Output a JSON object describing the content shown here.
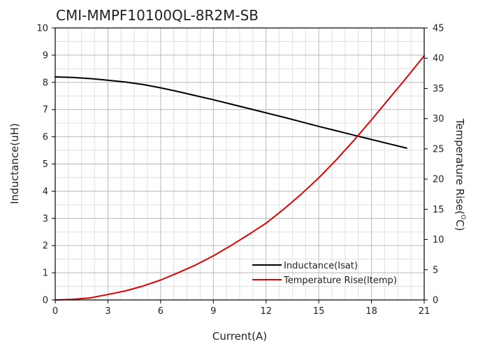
{
  "chart_data": {
    "type": "line",
    "title": "CMI-MMPF10100QL-8R2M-SB",
    "xlabel": "Current(A)",
    "ylabel_left": "Inductance(uH)",
    "ylabel_right_main": "Temperature Rise(",
    "ylabel_right_sup": "O",
    "ylabel_right_end": "C)",
    "xlim": [
      0,
      21
    ],
    "ylim_left": [
      0,
      10
    ],
    "ylim_right": [
      0,
      45
    ],
    "x_ticks": [
      "0",
      "3",
      "6",
      "9",
      "12",
      "15",
      "18",
      "21"
    ],
    "y_left_ticks": [
      "0",
      "1",
      "2",
      "3",
      "4",
      "5",
      "6",
      "7",
      "8",
      "9",
      "10"
    ],
    "y_right_ticks": [
      "0",
      "5",
      "10",
      "15",
      "20",
      "25",
      "30",
      "35",
      "40",
      "45"
    ],
    "grid": true,
    "legend_position": "bottom-right",
    "series": [
      {
        "name": "Inductance(Isat)",
        "axis": "left",
        "color": "#000000",
        "x": [
          0,
          1,
          2,
          3,
          4,
          5,
          6,
          7,
          8,
          9,
          10,
          11,
          12,
          13,
          14,
          15,
          16,
          17,
          18,
          19,
          20
        ],
        "y": [
          8.2,
          8.18,
          8.14,
          8.08,
          8.01,
          7.92,
          7.8,
          7.66,
          7.51,
          7.36,
          7.2,
          7.04,
          6.88,
          6.72,
          6.55,
          6.38,
          6.22,
          6.06,
          5.9,
          5.74,
          5.58
        ]
      },
      {
        "name": "Temperature Rise(Itemp)",
        "axis": "right",
        "color": "#e00000",
        "x": [
          0,
          1,
          2,
          3,
          4,
          5,
          6,
          7,
          8,
          9,
          10,
          11,
          12,
          13,
          14,
          15,
          16,
          17,
          18,
          19,
          20,
          21
        ],
        "y": [
          0,
          0.1,
          0.35,
          0.9,
          1.5,
          2.3,
          3.3,
          4.5,
          5.8,
          7.3,
          9,
          10.8,
          12.7,
          15,
          17.5,
          20.2,
          23.2,
          26.4,
          29.8,
          33.3,
          36.8,
          40.4
        ]
      }
    ]
  }
}
